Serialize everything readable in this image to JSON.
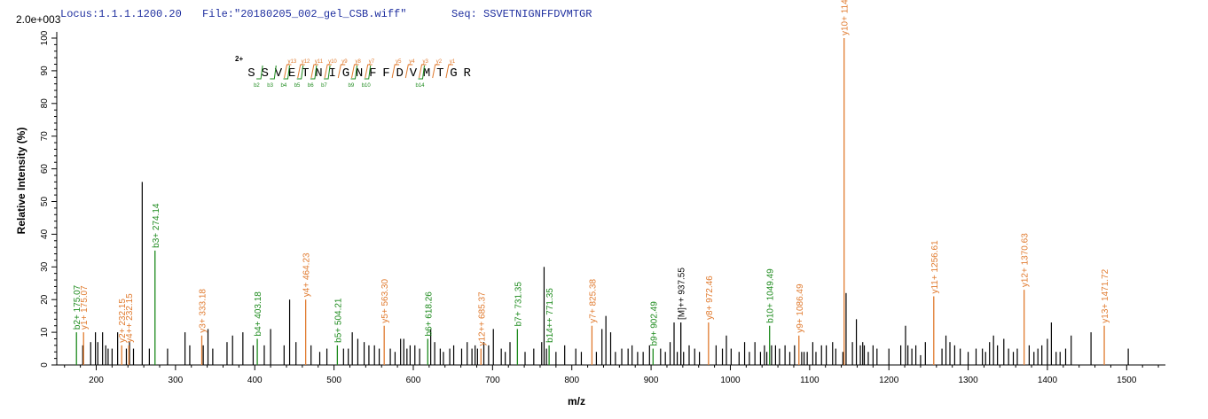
{
  "header": {
    "locus": "Locus:1.1.1.1200.20",
    "file": "File:\"20180205_002_gel_CSB.wiff\"",
    "seq": "Seq: SSVETNIGNFFDVMTGR",
    "scale": "2.0e+003"
  },
  "colors": {
    "y_ion": "#e07a2e",
    "b_ion": "#1c8a1c",
    "other": "#000000",
    "header": "#1f2f9f"
  },
  "sequence_map": {
    "charge": "2+",
    "residues": [
      "S",
      "S",
      "V",
      "E",
      "T",
      "N",
      "I",
      "G",
      "N",
      "F",
      "F",
      "D",
      "V",
      "M",
      "T",
      "G",
      "R"
    ],
    "b_breaks": [
      {
        "after": 1,
        "label": "b2"
      },
      {
        "after": 2,
        "label": "b3"
      },
      {
        "after": 3,
        "label": "b4"
      },
      {
        "after": 4,
        "label": "b5"
      },
      {
        "after": 5,
        "label": "b6"
      },
      {
        "after": 6,
        "label": "b7"
      },
      {
        "after": 8,
        "label": "b9"
      },
      {
        "after": 9,
        "label": "b10"
      },
      {
        "after": 13,
        "label": "b14"
      }
    ],
    "y_breaks": [
      {
        "after": 3,
        "label": "y13"
      },
      {
        "after": 4,
        "label": "y12"
      },
      {
        "after": 5,
        "label": "y11"
      },
      {
        "after": 6,
        "label": "y10"
      },
      {
        "after": 7,
        "label": "y9"
      },
      {
        "after": 8,
        "label": "y8"
      },
      {
        "after": 9,
        "label": "y7"
      },
      {
        "after": 11,
        "label": "y5"
      },
      {
        "after": 12,
        "label": "y4"
      },
      {
        "after": 13,
        "label": "y3"
      },
      {
        "after": 14,
        "label": "y2"
      },
      {
        "after": 15,
        "label": "y1"
      }
    ]
  },
  "chart_data": {
    "type": "bar",
    "xlabel": "m/z",
    "ylabel": "Relative   Intensity (%)",
    "xlim": [
      150,
      1540
    ],
    "ylim": [
      0,
      100
    ],
    "xticks": [
      200,
      300,
      400,
      500,
      600,
      700,
      800,
      900,
      1000,
      1100,
      1200,
      1300,
      1400,
      1500
    ],
    "yticks": [
      0,
      10,
      20,
      30,
      40,
      50,
      60,
      70,
      80,
      90,
      100
    ],
    "labeled_peaks": [
      {
        "mz": 175.07,
        "intensity": 10,
        "label": "b2+ 175.07",
        "ion": "b"
      },
      {
        "mz": 175.07,
        "intensity": 10,
        "label": "y1+ 175.07",
        "ion": "y"
      },
      {
        "mz": 232.15,
        "intensity": 6,
        "label": "y2+ 232.15",
        "ion": "y"
      },
      {
        "mz": 232.15,
        "intensity": 6,
        "label": "y4++ 232.15",
        "ion": "y"
      },
      {
        "mz": 274.14,
        "intensity": 35,
        "label": "b3+ 274.14",
        "ion": "b"
      },
      {
        "mz": 333.18,
        "intensity": 9,
        "label": "y3+ 333.18",
        "ion": "y"
      },
      {
        "mz": 403.18,
        "intensity": 8,
        "label": "b4+ 403.18",
        "ion": "b"
      },
      {
        "mz": 464.23,
        "intensity": 20,
        "label": "y4+ 464.23",
        "ion": "y"
      },
      {
        "mz": 504.21,
        "intensity": 6,
        "label": "b5+ 504.21",
        "ion": "b"
      },
      {
        "mz": 563.3,
        "intensity": 12,
        "label": "y5+ 563.30",
        "ion": "y"
      },
      {
        "mz": 618.26,
        "intensity": 8,
        "label": "b6+ 618.26",
        "ion": "b"
      },
      {
        "mz": 685.37,
        "intensity": 5,
        "label": "y12++ 685.37",
        "ion": "y"
      },
      {
        "mz": 731.35,
        "intensity": 11,
        "label": "b7+ 731.35",
        "ion": "b"
      },
      {
        "mz": 771.35,
        "intensity": 6,
        "label": "b14++ 771.35",
        "ion": "b"
      },
      {
        "mz": 825.38,
        "intensity": 12,
        "label": "y7+ 825.38",
        "ion": "y"
      },
      {
        "mz": 902.49,
        "intensity": 5,
        "label": "b9+ 902.49",
        "ion": "b"
      },
      {
        "mz": 937.55,
        "intensity": 13,
        "label": "[M]++ 937.55",
        "ion": "other"
      },
      {
        "mz": 972.46,
        "intensity": 13,
        "label": "y8+ 972.46",
        "ion": "y"
      },
      {
        "mz": 1049.49,
        "intensity": 12,
        "label": "b10+ 1049.49",
        "ion": "b"
      },
      {
        "mz": 1086.49,
        "intensity": 9,
        "label": "y9+ 1086.49",
        "ion": "y"
      },
      {
        "mz": 1143.52,
        "intensity": 100,
        "label": "y10+ 1143.52",
        "ion": "y"
      },
      {
        "mz": 1256.61,
        "intensity": 21,
        "label": "y11+ 1256.61",
        "ion": "y"
      },
      {
        "mz": 1370.63,
        "intensity": 23,
        "label": "y12+ 1370.63",
        "ion": "y"
      },
      {
        "mz": 1471.72,
        "intensity": 12,
        "label": "y13+ 1471.72",
        "ion": "y"
      }
    ],
    "unlabeled_peaks": [
      [
        183,
        6
      ],
      [
        193,
        7
      ],
      [
        199,
        10
      ],
      [
        202,
        7
      ],
      [
        208,
        10
      ],
      [
        212,
        6
      ],
      [
        215,
        5
      ],
      [
        220,
        5
      ],
      [
        227,
        10
      ],
      [
        238,
        5
      ],
      [
        242,
        7
      ],
      [
        247,
        5
      ],
      [
        258,
        56
      ],
      [
        267,
        5
      ],
      [
        290,
        5
      ],
      [
        312,
        10
      ],
      [
        318,
        6
      ],
      [
        335,
        6
      ],
      [
        341,
        11
      ],
      [
        347,
        5
      ],
      [
        365,
        7
      ],
      [
        372,
        9
      ],
      [
        385,
        10
      ],
      [
        398,
        6
      ],
      [
        412,
        6
      ],
      [
        420,
        11
      ],
      [
        437,
        6
      ],
      [
        444,
        20
      ],
      [
        452,
        7
      ],
      [
        471,
        6
      ],
      [
        482,
        4
      ],
      [
        491,
        5
      ],
      [
        512,
        5
      ],
      [
        518,
        5
      ],
      [
        523,
        10
      ],
      [
        530,
        8
      ],
      [
        538,
        7
      ],
      [
        544,
        6
      ],
      [
        551,
        6
      ],
      [
        557,
        5
      ],
      [
        571,
        5
      ],
      [
        577,
        4
      ],
      [
        584,
        8
      ],
      [
        588,
        8
      ],
      [
        592,
        5
      ],
      [
        596,
        6
      ],
      [
        602,
        6
      ],
      [
        608,
        5
      ],
      [
        622,
        11
      ],
      [
        627,
        7
      ],
      [
        634,
        5
      ],
      [
        638,
        4
      ],
      [
        646,
        5
      ],
      [
        651,
        6
      ],
      [
        661,
        5
      ],
      [
        668,
        7
      ],
      [
        674,
        5
      ],
      [
        678,
        6
      ],
      [
        681,
        5
      ],
      [
        689,
        7
      ],
      [
        695,
        6
      ],
      [
        701,
        11
      ],
      [
        711,
        5
      ],
      [
        716,
        4
      ],
      [
        722,
        7
      ],
      [
        741,
        4
      ],
      [
        752,
        5
      ],
      [
        762,
        7
      ],
      [
        765,
        30
      ],
      [
        768,
        5
      ],
      [
        780,
        4
      ],
      [
        791,
        6
      ],
      [
        805,
        5
      ],
      [
        812,
        4
      ],
      [
        831,
        4
      ],
      [
        838,
        11
      ],
      [
        843,
        15
      ],
      [
        849,
        10
      ],
      [
        855,
        4
      ],
      [
        863,
        5
      ],
      [
        871,
        5
      ],
      [
        876,
        6
      ],
      [
        883,
        4
      ],
      [
        890,
        4
      ],
      [
        898,
        6
      ],
      [
        912,
        5
      ],
      [
        918,
        4
      ],
      [
        924,
        7
      ],
      [
        929,
        13
      ],
      [
        933,
        4
      ],
      [
        941,
        4
      ],
      [
        948,
        6
      ],
      [
        955,
        5
      ],
      [
        961,
        4
      ],
      [
        982,
        6
      ],
      [
        990,
        5
      ],
      [
        995,
        9
      ],
      [
        1001,
        5
      ],
      [
        1011,
        4
      ],
      [
        1018,
        7
      ],
      [
        1024,
        4
      ],
      [
        1031,
        7
      ],
      [
        1038,
        4
      ],
      [
        1043,
        6
      ],
      [
        1046,
        4
      ],
      [
        1052,
        6
      ],
      [
        1057,
        6
      ],
      [
        1062,
        5
      ],
      [
        1069,
        6
      ],
      [
        1075,
        4
      ],
      [
        1081,
        6
      ],
      [
        1090,
        4
      ],
      [
        1093,
        4
      ],
      [
        1097,
        4
      ],
      [
        1104,
        7
      ],
      [
        1108,
        4
      ],
      [
        1115,
        6
      ],
      [
        1121,
        6
      ],
      [
        1129,
        7
      ],
      [
        1133,
        5
      ],
      [
        1142,
        4
      ],
      [
        1146,
        22
      ],
      [
        1154,
        7
      ],
      [
        1159,
        14
      ],
      [
        1164,
        6
      ],
      [
        1167,
        7
      ],
      [
        1169,
        6
      ],
      [
        1174,
        4
      ],
      [
        1180,
        6
      ],
      [
        1185,
        5
      ],
      [
        1200,
        5
      ],
      [
        1215,
        6
      ],
      [
        1221,
        12
      ],
      [
        1224,
        6
      ],
      [
        1229,
        5
      ],
      [
        1234,
        6
      ],
      [
        1240,
        3
      ],
      [
        1246,
        7
      ],
      [
        1267,
        5
      ],
      [
        1272,
        9
      ],
      [
        1277,
        7
      ],
      [
        1283,
        6
      ],
      [
        1290,
        5
      ],
      [
        1300,
        4
      ],
      [
        1310,
        5
      ],
      [
        1318,
        5
      ],
      [
        1322,
        4
      ],
      [
        1327,
        7
      ],
      [
        1332,
        9
      ],
      [
        1337,
        6
      ],
      [
        1345,
        8
      ],
      [
        1351,
        5
      ],
      [
        1357,
        4
      ],
      [
        1362,
        5
      ],
      [
        1377,
        6
      ],
      [
        1383,
        4
      ],
      [
        1388,
        5
      ],
      [
        1393,
        6
      ],
      [
        1400,
        8
      ],
      [
        1405,
        13
      ],
      [
        1411,
        4
      ],
      [
        1416,
        4
      ],
      [
        1423,
        5
      ],
      [
        1430,
        9
      ],
      [
        1455,
        10
      ],
      [
        1502,
        5
      ]
    ]
  }
}
